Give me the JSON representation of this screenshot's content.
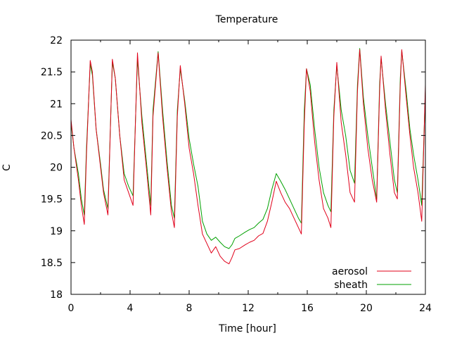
{
  "chart_data": {
    "type": "line",
    "title": "Temperature",
    "xlabel": "Time [hour]",
    "ylabel": "C",
    "xlim": [
      0,
      24
    ],
    "ylim": [
      18,
      22
    ],
    "xticks": [
      0,
      4,
      8,
      12,
      16,
      20,
      24
    ],
    "xtick_labels": [
      "0",
      "4",
      "8",
      "12",
      "16",
      "20",
      "24"
    ],
    "yticks": [
      18,
      18.5,
      19,
      19.5,
      20,
      20.5,
      21,
      21.5,
      22
    ],
    "ytick_labels": [
      "18",
      "18.5",
      "19",
      "19.5",
      "20",
      "20.5",
      "21",
      "21.5",
      "22"
    ],
    "grid": false,
    "legend": "bottom-right",
    "series": [
      {
        "name": "aerosol",
        "color": "#e0001a",
        "points": [
          [
            0.0,
            20.75
          ],
          [
            0.2,
            20.3
          ],
          [
            0.5,
            19.8
          ],
          [
            0.7,
            19.4
          ],
          [
            0.9,
            19.1
          ],
          [
            1.05,
            20.2
          ],
          [
            1.3,
            21.68
          ],
          [
            1.45,
            21.5
          ],
          [
            1.7,
            20.6
          ],
          [
            2.0,
            20.0
          ],
          [
            2.2,
            19.6
          ],
          [
            2.5,
            19.25
          ],
          [
            2.8,
            21.7
          ],
          [
            3.0,
            21.4
          ],
          [
            3.3,
            20.5
          ],
          [
            3.6,
            19.8
          ],
          [
            3.9,
            19.6
          ],
          [
            4.2,
            19.4
          ],
          [
            4.5,
            21.8
          ],
          [
            4.8,
            20.7
          ],
          [
            5.1,
            20.0
          ],
          [
            5.4,
            19.25
          ],
          [
            5.55,
            20.8
          ],
          [
            5.9,
            21.8
          ],
          [
            6.2,
            20.8
          ],
          [
            6.5,
            20.0
          ],
          [
            6.8,
            19.3
          ],
          [
            7.0,
            19.05
          ],
          [
            7.2,
            20.8
          ],
          [
            7.4,
            21.6
          ],
          [
            7.7,
            21.0
          ],
          [
            8.0,
            20.3
          ],
          [
            8.3,
            19.9
          ],
          [
            8.6,
            19.4
          ],
          [
            8.9,
            18.95
          ],
          [
            9.2,
            18.8
          ],
          [
            9.5,
            18.65
          ],
          [
            9.8,
            18.75
          ],
          [
            10.1,
            18.6
          ],
          [
            10.4,
            18.52
          ],
          [
            10.7,
            18.48
          ],
          [
            10.9,
            18.58
          ],
          [
            11.1,
            18.7
          ],
          [
            11.4,
            18.72
          ],
          [
            11.8,
            18.78
          ],
          [
            12.1,
            18.82
          ],
          [
            12.4,
            18.85
          ],
          [
            12.7,
            18.92
          ],
          [
            13.0,
            18.96
          ],
          [
            13.3,
            19.15
          ],
          [
            13.6,
            19.45
          ],
          [
            13.9,
            19.78
          ],
          [
            14.2,
            19.6
          ],
          [
            14.5,
            19.45
          ],
          [
            14.8,
            19.35
          ],
          [
            15.1,
            19.2
          ],
          [
            15.4,
            19.05
          ],
          [
            15.6,
            18.95
          ],
          [
            15.8,
            20.7
          ],
          [
            15.95,
            21.55
          ],
          [
            16.2,
            21.2
          ],
          [
            16.5,
            20.4
          ],
          [
            16.8,
            19.8
          ],
          [
            17.1,
            19.35
          ],
          [
            17.4,
            19.2
          ],
          [
            17.6,
            19.05
          ],
          [
            17.8,
            20.8
          ],
          [
            18.0,
            21.65
          ],
          [
            18.3,
            20.7
          ],
          [
            18.6,
            20.2
          ],
          [
            18.9,
            19.6
          ],
          [
            19.2,
            19.45
          ],
          [
            19.4,
            21.2
          ],
          [
            19.55,
            21.85
          ],
          [
            19.8,
            21.0
          ],
          [
            20.1,
            20.3
          ],
          [
            20.4,
            19.8
          ],
          [
            20.7,
            19.45
          ],
          [
            20.9,
            21.2
          ],
          [
            21.0,
            21.75
          ],
          [
            21.3,
            20.9
          ],
          [
            21.6,
            20.2
          ],
          [
            21.9,
            19.6
          ],
          [
            22.1,
            19.5
          ],
          [
            22.3,
            21.3
          ],
          [
            22.4,
            21.85
          ],
          [
            22.7,
            21.1
          ],
          [
            22.95,
            20.5
          ],
          [
            23.2,
            20.0
          ],
          [
            23.5,
            19.6
          ],
          [
            23.75,
            19.15
          ],
          [
            24.0,
            21.3
          ]
        ]
      },
      {
        "name": "sheath",
        "color": "#00a000",
        "points": [
          [
            0.0,
            20.7
          ],
          [
            0.2,
            20.3
          ],
          [
            0.5,
            19.9
          ],
          [
            0.7,
            19.5
          ],
          [
            0.9,
            19.25
          ],
          [
            1.05,
            20.3
          ],
          [
            1.3,
            21.62
          ],
          [
            1.45,
            21.45
          ],
          [
            1.7,
            20.6
          ],
          [
            2.0,
            20.05
          ],
          [
            2.2,
            19.65
          ],
          [
            2.5,
            19.35
          ],
          [
            2.8,
            21.65
          ],
          [
            3.0,
            21.4
          ],
          [
            3.3,
            20.5
          ],
          [
            3.6,
            19.9
          ],
          [
            3.9,
            19.7
          ],
          [
            4.2,
            19.55
          ],
          [
            4.5,
            21.7
          ],
          [
            4.8,
            20.8
          ],
          [
            5.1,
            20.1
          ],
          [
            5.4,
            19.4
          ],
          [
            5.55,
            20.9
          ],
          [
            5.9,
            21.82
          ],
          [
            6.2,
            20.9
          ],
          [
            6.5,
            20.1
          ],
          [
            6.8,
            19.4
          ],
          [
            7.0,
            19.2
          ],
          [
            7.2,
            20.9
          ],
          [
            7.4,
            21.55
          ],
          [
            7.7,
            21.05
          ],
          [
            8.0,
            20.45
          ],
          [
            8.3,
            20.05
          ],
          [
            8.6,
            19.7
          ],
          [
            8.9,
            19.15
          ],
          [
            9.2,
            18.95
          ],
          [
            9.5,
            18.85
          ],
          [
            9.8,
            18.9
          ],
          [
            10.1,
            18.82
          ],
          [
            10.4,
            18.75
          ],
          [
            10.7,
            18.72
          ],
          [
            10.9,
            18.78
          ],
          [
            11.1,
            18.88
          ],
          [
            11.4,
            18.92
          ],
          [
            11.8,
            18.98
          ],
          [
            12.1,
            19.02
          ],
          [
            12.4,
            19.05
          ],
          [
            12.7,
            19.12
          ],
          [
            13.0,
            19.18
          ],
          [
            13.3,
            19.35
          ],
          [
            13.6,
            19.65
          ],
          [
            13.9,
            19.9
          ],
          [
            14.2,
            19.78
          ],
          [
            14.5,
            19.65
          ],
          [
            14.8,
            19.5
          ],
          [
            15.1,
            19.35
          ],
          [
            15.4,
            19.2
          ],
          [
            15.6,
            19.12
          ],
          [
            15.8,
            20.9
          ],
          [
            15.95,
            21.55
          ],
          [
            16.2,
            21.3
          ],
          [
            16.5,
            20.6
          ],
          [
            16.8,
            20.0
          ],
          [
            17.1,
            19.6
          ],
          [
            17.4,
            19.4
          ],
          [
            17.6,
            19.3
          ],
          [
            17.8,
            20.9
          ],
          [
            18.0,
            21.6
          ],
          [
            18.3,
            20.9
          ],
          [
            18.6,
            20.5
          ],
          [
            18.9,
            19.95
          ],
          [
            19.2,
            19.75
          ],
          [
            19.4,
            21.3
          ],
          [
            19.55,
            21.87
          ],
          [
            19.8,
            21.1
          ],
          [
            20.1,
            20.5
          ],
          [
            20.4,
            20.0
          ],
          [
            20.7,
            19.5
          ],
          [
            20.9,
            21.3
          ],
          [
            21.0,
            21.72
          ],
          [
            21.3,
            21.0
          ],
          [
            21.6,
            20.4
          ],
          [
            21.9,
            19.8
          ],
          [
            22.1,
            19.6
          ],
          [
            22.3,
            21.4
          ],
          [
            22.4,
            21.83
          ],
          [
            22.7,
            21.2
          ],
          [
            22.95,
            20.6
          ],
          [
            23.2,
            20.2
          ],
          [
            23.5,
            19.8
          ],
          [
            23.75,
            19.4
          ],
          [
            24.0,
            21.2
          ]
        ]
      }
    ]
  }
}
